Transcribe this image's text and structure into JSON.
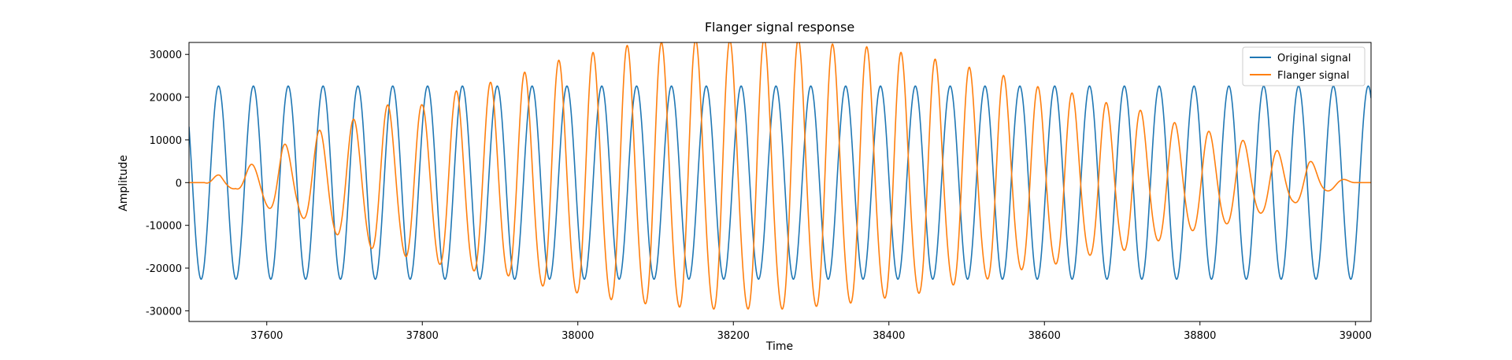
{
  "chart_data": {
    "type": "line",
    "title": "Flanger signal response",
    "xlabel": "Time",
    "ylabel": "Amplitude",
    "xlim": [
      37500,
      39020
    ],
    "ylim": [
      -32500,
      32800
    ],
    "xticks": [
      37600,
      37800,
      38000,
      38200,
      38400,
      38600,
      38800,
      39000
    ],
    "yticks": [
      -30000,
      -20000,
      -10000,
      0,
      10000,
      20000,
      30000
    ],
    "grid": false,
    "legend_position": "top-right",
    "series": [
      {
        "name": "Original signal",
        "color": "#1f77b4",
        "model": "sine",
        "amplitude": 22600,
        "period": 44.8,
        "phase_peak_at": 37538
      },
      {
        "name": "Flanger signal",
        "color": "#ff7f0e",
        "model": "envelope-modulated oscillation",
        "x": [
          37500,
          37520,
          37540,
          37560,
          37580,
          37600,
          37620,
          37640,
          37660,
          37680,
          37700,
          37720,
          37740,
          37760,
          37780,
          37800,
          37820,
          37840,
          37860,
          37880,
          37900,
          37920,
          37940,
          37960,
          37980,
          38000,
          38020,
          38040,
          38060,
          38080,
          38100,
          38120,
          38140,
          38160,
          38180,
          38200,
          38220,
          38240,
          38260,
          38280,
          38300,
          38320,
          38340,
          38360,
          38380,
          38400,
          38420,
          38440,
          38460,
          38480,
          38500,
          38520,
          38540,
          38560,
          38580,
          38600,
          38620,
          38640,
          38660,
          38680,
          38700,
          38720,
          38740,
          38760,
          38780,
          38800,
          38820,
          38840,
          38860,
          38880,
          38900,
          38920,
          38940,
          38960,
          38980,
          39000,
          39020
        ],
        "values": [
          0,
          0,
          -2000,
          1500,
          4000,
          -6000,
          8500,
          -8000,
          10500,
          -13000,
          13000,
          -14500,
          17000,
          -17000,
          18500,
          -17000,
          20500,
          -19500,
          22500,
          -21000,
          23500,
          -23000,
          25000,
          -26000,
          27000,
          -27500,
          28500,
          -29000,
          30000,
          -30000,
          30500,
          -31000,
          31000,
          -31500,
          31500,
          -31000,
          31500,
          -31500,
          31500,
          -31500,
          31000,
          -30500,
          30000,
          -30000,
          29500,
          -28500,
          28500,
          -27500,
          27000,
          -25500,
          25500,
          -24000,
          24000,
          -22500,
          21000,
          -21000,
          20000,
          -19500,
          18000,
          -17500,
          17000,
          -16000,
          15000,
          -13500,
          12500,
          -11500,
          11000,
          -10000,
          9000,
          -7500,
          7000,
          -5000,
          5000,
          -2500,
          1000,
          0,
          0
        ],
        "envelope_peak_at": 38240,
        "period": 44.0
      }
    ]
  }
}
